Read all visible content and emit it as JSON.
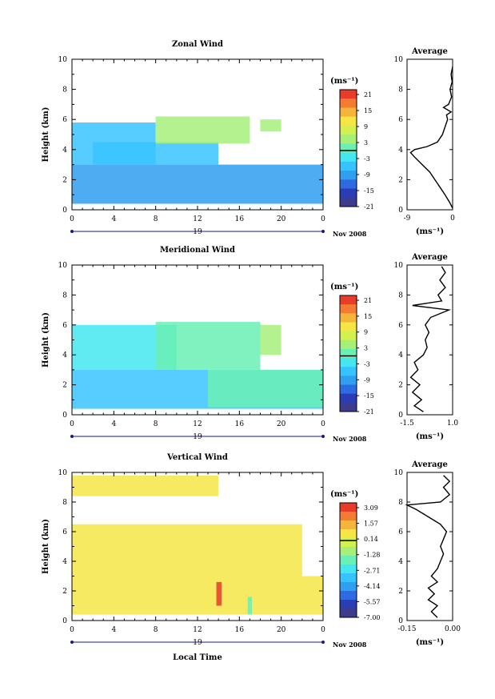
{
  "chart_data": [
    {
      "type": "heatmap",
      "title": "Zonal Wind",
      "xlabel": "",
      "ylabel": "Height (km)",
      "xlim": [
        0,
        24
      ],
      "ylim": [
        0,
        10
      ],
      "x_ticks": [
        "0",
        "4",
        "8",
        "12",
        "16",
        "20",
        "0"
      ],
      "y_ticks": [
        "0",
        "2",
        "4",
        "6",
        "8",
        "10"
      ],
      "date_label": "19",
      "month_label": "Nov 2008",
      "colorbar": {
        "unit_label": "(ms⁻¹)",
        "tick_labels": [
          "21",
          "15",
          "9",
          "3",
          "-3",
          "-9",
          "-15",
          "-21"
        ],
        "zero_index": 3.5
      },
      "regions": [
        {
          "x0": 0,
          "x1": 24,
          "y0": 0.4,
          "y1": 3.0,
          "value": -9
        },
        {
          "x0": 0,
          "x1": 8,
          "y0": 3.0,
          "y1": 5.8,
          "value": -5
        },
        {
          "x0": 2,
          "x1": 14,
          "y0": 3.0,
          "y1": 4.5,
          "value": -6
        },
        {
          "x0": 8,
          "x1": 17,
          "y0": 4.4,
          "y1": 6.2,
          "value": 3
        },
        {
          "x0": 18,
          "x1": 20,
          "y0": 5.2,
          "y1": 6.0,
          "value": 3
        }
      ],
      "average": {
        "title": "Average",
        "unit_label": "(ms⁻¹)",
        "xlim": [
          -9,
          0
        ],
        "x_ticks": [
          "-9",
          "0"
        ],
        "y_ticks": [
          "0",
          "2",
          "4",
          "6",
          "8",
          "10"
        ],
        "profile": [
          [
            0,
            0.1
          ],
          [
            -0.6,
            0.5
          ],
          [
            -1.5,
            1.0
          ],
          [
            -2.5,
            1.5
          ],
          [
            -3.5,
            2.0
          ],
          [
            -4.5,
            2.5
          ],
          [
            -6.0,
            3.0
          ],
          [
            -7.5,
            3.5
          ],
          [
            -8.3,
            3.8
          ],
          [
            -7.5,
            4.0
          ],
          [
            -5.0,
            4.2
          ],
          [
            -3.0,
            4.5
          ],
          [
            -2.0,
            5.0
          ],
          [
            -1.5,
            5.5
          ],
          [
            -1.0,
            6.0
          ],
          [
            -1.2,
            6.3
          ],
          [
            -0.3,
            6.5
          ],
          [
            -1.8,
            6.8
          ],
          [
            -0.8,
            7.0
          ],
          [
            -0.2,
            7.5
          ],
          [
            -0.5,
            8.0
          ],
          [
            -0.1,
            8.5
          ],
          [
            -0.3,
            9.0
          ],
          [
            0,
            9.5
          ]
        ]
      }
    },
    {
      "type": "heatmap",
      "title": "Meridional Wind",
      "xlabel": "",
      "ylabel": "Height (km)",
      "xlim": [
        0,
        24
      ],
      "ylim": [
        0,
        10
      ],
      "x_ticks": [
        "0",
        "4",
        "8",
        "12",
        "16",
        "20",
        "0"
      ],
      "y_ticks": [
        "0",
        "2",
        "4",
        "6",
        "8",
        "10"
      ],
      "date_label": "19",
      "month_label": "Nov 2008",
      "colorbar": {
        "unit_label": "(ms⁻¹)",
        "tick_labels": [
          "21",
          "15",
          "9",
          "3",
          "-3",
          "-9",
          "-15",
          "-21"
        ],
        "zero_index": 3.5
      },
      "regions": [
        {
          "x0": 0,
          "x1": 24,
          "y0": 0.4,
          "y1": 3.0,
          "value": -5
        },
        {
          "x0": 0,
          "x1": 10,
          "y0": 3.0,
          "y1": 6.0,
          "value": -3
        },
        {
          "x0": 8,
          "x1": 18,
          "y0": 3.0,
          "y1": 6.2,
          "value": -1
        },
        {
          "x0": 13,
          "x1": 24,
          "y0": 0.5,
          "y1": 3.0,
          "value": 1.5
        },
        {
          "x0": 18,
          "x1": 20,
          "y0": 4.0,
          "y1": 6.0,
          "value": 2
        }
      ],
      "average": {
        "title": "Average",
        "unit_label": "(ms⁻¹)",
        "xlim": [
          -1.5,
          1.0
        ],
        "x_ticks": [
          "-1.5",
          "1.0"
        ],
        "y_ticks": [
          "0",
          "2",
          "4",
          "6",
          "8",
          "10"
        ],
        "profile": [
          [
            -0.6,
            0.2
          ],
          [
            -1.1,
            0.6
          ],
          [
            -0.7,
            1.0
          ],
          [
            -1.2,
            1.5
          ],
          [
            -0.8,
            2.0
          ],
          [
            -1.3,
            2.5
          ],
          [
            -0.9,
            3.0
          ],
          [
            -1.1,
            3.5
          ],
          [
            -0.6,
            4.0
          ],
          [
            -0.4,
            4.5
          ],
          [
            -0.5,
            5.0
          ],
          [
            -0.3,
            5.5
          ],
          [
            -0.5,
            6.0
          ],
          [
            -0.2,
            6.5
          ],
          [
            0.8,
            7.0
          ],
          [
            -1.2,
            7.3
          ],
          [
            0.4,
            7.6
          ],
          [
            0.2,
            8.0
          ],
          [
            0.6,
            8.5
          ],
          [
            0.3,
            9.0
          ],
          [
            0.6,
            9.5
          ],
          [
            0.4,
            9.9
          ]
        ]
      }
    },
    {
      "type": "heatmap",
      "title": "Vertical Wind",
      "xlabel": "Local Time",
      "ylabel": "Height (km)",
      "xlim": [
        0,
        24
      ],
      "ylim": [
        0,
        10
      ],
      "x_ticks": [
        "0",
        "4",
        "8",
        "12",
        "16",
        "20",
        "0"
      ],
      "y_ticks": [
        "0",
        "2",
        "4",
        "6",
        "8",
        "10"
      ],
      "date_label": "19",
      "month_label": "Nov 2008",
      "colorbar": {
        "unit_label": "(ms⁻¹)",
        "tick_labels": [
          "3.09",
          "1.57",
          "0.14",
          "-1.28",
          "-2.71",
          "-4.14",
          "-5.57",
          "-7.00"
        ],
        "zero_index": 2.1
      },
      "regions": [
        {
          "x0": 0,
          "x1": 24,
          "y0": 0.4,
          "y1": 3.0,
          "value": 0.6
        },
        {
          "x0": 0,
          "x1": 22,
          "y0": 3.0,
          "y1": 6.5,
          "value": 0.2
        },
        {
          "x0": 0,
          "x1": 14,
          "y0": 8.4,
          "y1": 9.8,
          "value": 0.1
        },
        {
          "x0": 13.8,
          "x1": 14.3,
          "y0": 1.0,
          "y1": 2.6,
          "value": 2.8
        },
        {
          "x0": 16.8,
          "x1": 17.2,
          "y0": 0.4,
          "y1": 1.6,
          "value": -2.0
        }
      ],
      "average": {
        "title": "Average",
        "unit_label": "(ms⁻¹)",
        "xlim": [
          -0.15,
          0.0
        ],
        "x_ticks": [
          "-0.15",
          "0.00"
        ],
        "y_ticks": [
          "0",
          "2",
          "4",
          "6",
          "8",
          "10"
        ],
        "profile": [
          [
            -0.05,
            0.2
          ],
          [
            -0.07,
            0.6
          ],
          [
            -0.05,
            1.0
          ],
          [
            -0.08,
            1.4
          ],
          [
            -0.06,
            1.8
          ],
          [
            -0.08,
            2.2
          ],
          [
            -0.05,
            2.6
          ],
          [
            -0.07,
            3.0
          ],
          [
            -0.05,
            3.5
          ],
          [
            -0.04,
            4.0
          ],
          [
            -0.03,
            4.5
          ],
          [
            -0.04,
            5.0
          ],
          [
            -0.03,
            5.5
          ],
          [
            -0.02,
            6.0
          ],
          [
            -0.04,
            6.5
          ],
          [
            -0.08,
            7.0
          ],
          [
            -0.12,
            7.5
          ],
          [
            -0.15,
            7.8
          ],
          [
            -0.04,
            8.0
          ],
          [
            -0.01,
            8.5
          ],
          [
            -0.03,
            9.0
          ],
          [
            -0.01,
            9.4
          ],
          [
            -0.03,
            9.8
          ]
        ]
      }
    }
  ]
}
